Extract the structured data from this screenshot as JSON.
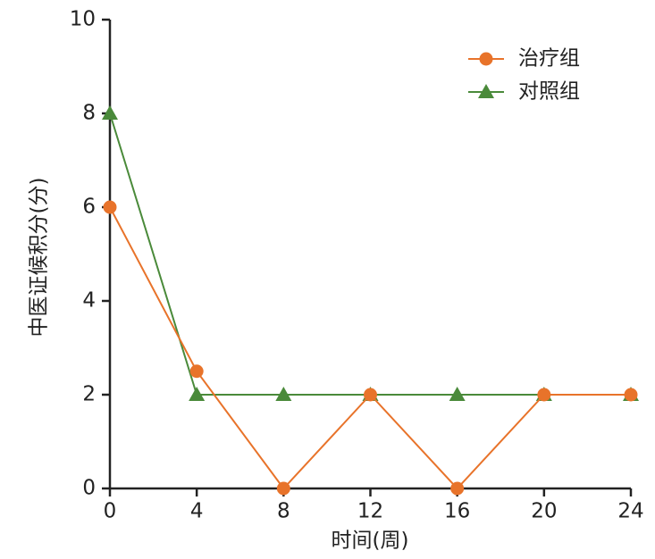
{
  "chart_data": {
    "type": "line",
    "x_label": "时间(周)",
    "y_label": "中医证候积分(分)",
    "x": [
      0,
      4,
      8,
      12,
      16,
      20,
      24
    ],
    "series": [
      {
        "name": "治疗组",
        "color": "#e8732a",
        "marker": "circle",
        "values": [
          6,
          2.5,
          0,
          2,
          0,
          2,
          2
        ]
      },
      {
        "name": "对照组",
        "color": "#4a8a3a",
        "marker": "triangle",
        "values": [
          8,
          2,
          2,
          2,
          2,
          2,
          2
        ]
      }
    ],
    "xlim": [
      0,
      24
    ],
    "xticks": [
      0,
      4,
      8,
      12,
      16,
      20,
      24
    ],
    "ylim": [
      0,
      10
    ],
    "yticks": [
      0,
      2,
      4,
      6,
      8,
      10
    ],
    "legend": "upper-right"
  }
}
